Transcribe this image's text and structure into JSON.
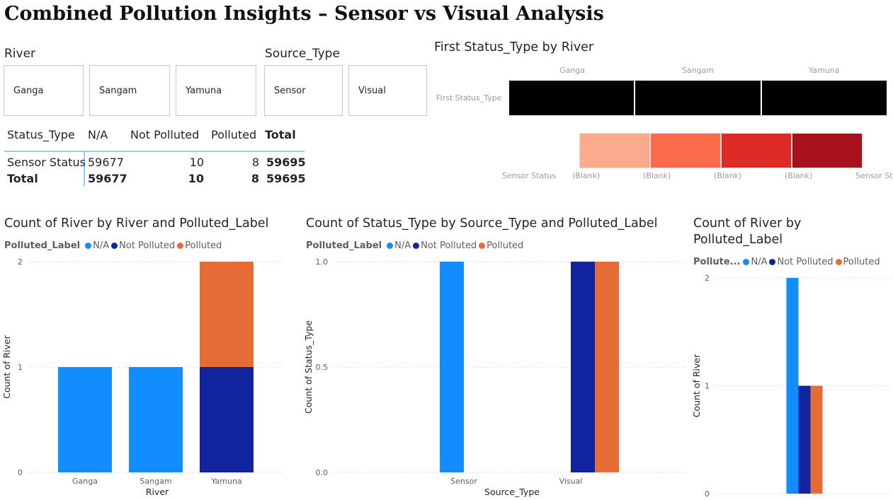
{
  "page_title": "Combined Pollution Insights – Sensor vs Visual Analysis",
  "colors": {
    "na": "#118dff",
    "not_polluted": "#12239e",
    "polluted": "#e66c37",
    "heat": [
      "#fcaa8e",
      "#fc6a4c",
      "#dc2b26",
      "#a7111b"
    ],
    "black_band": "#000000"
  },
  "slicers": {
    "river": {
      "title": "River",
      "items": [
        "Ganga",
        "Sangam",
        "Yamuna"
      ]
    },
    "source_type": {
      "title": "Source_Type",
      "items": [
        "Sensor",
        "Visual"
      ]
    }
  },
  "matrix": {
    "headers": [
      "Status_Type",
      "N/A",
      "Not Polluted",
      "Polluted",
      "Total"
    ],
    "rows": [
      {
        "label": "Sensor Status",
        "na": "59677",
        "not_polluted": "10",
        "polluted": "8",
        "total": "59695"
      },
      {
        "label": "Total",
        "na": "59677",
        "not_polluted": "10",
        "polluted": "8",
        "total": "59695"
      }
    ]
  },
  "heatmap": {
    "title": "First Status_Type by River",
    "columns": [
      "Ganga",
      "Sangam",
      "Yamuna"
    ],
    "row_label": "First Status_Type",
    "bottom_labels": [
      "Sensor Status",
      "(Blank)",
      "(Blank)",
      "(Blank)",
      "(Blank)",
      "Sensor Sta"
    ]
  },
  "chart_data": [
    {
      "type": "bar",
      "stacked": true,
      "title": "Count of River by River and Polluted_Label",
      "legend_title": "Polluted_Label",
      "legend": [
        "N/A",
        "Not Polluted",
        "Polluted"
      ],
      "xlabel": "River",
      "ylabel": "Count of River",
      "categories": [
        "Ganga",
        "Sangam",
        "Yamuna"
      ],
      "series": [
        {
          "name": "N/A",
          "values": [
            1,
            1,
            0
          ]
        },
        {
          "name": "Not Polluted",
          "values": [
            0,
            0,
            1
          ]
        },
        {
          "name": "Polluted",
          "values": [
            0,
            0,
            1
          ]
        }
      ],
      "ylim": [
        0,
        2
      ],
      "yticks": [
        "0",
        "1",
        "2"
      ],
      "grid": true,
      "legend_position": "top-left"
    },
    {
      "type": "bar",
      "stacked": false,
      "title": "Count of Status_Type by Source_Type and Polluted_Label",
      "legend_title": "Polluted_Label",
      "legend": [
        "N/A",
        "Not Polluted",
        "Polluted"
      ],
      "xlabel": "Source_Type",
      "ylabel": "Count of Status_Type",
      "categories": [
        "Sensor",
        "Visual"
      ],
      "series": [
        {
          "name": "N/A",
          "values": [
            1,
            0
          ]
        },
        {
          "name": "Not Polluted",
          "values": [
            0,
            1
          ]
        },
        {
          "name": "Polluted",
          "values": [
            0,
            1
          ]
        }
      ],
      "ylim": [
        0,
        1
      ],
      "yticks": [
        "0.0",
        "0.5",
        "1.0"
      ],
      "grid": true,
      "legend_position": "top-left"
    },
    {
      "type": "bar",
      "stacked": false,
      "title": "Count of River by Polluted_Label",
      "legend_title": "Pollute...",
      "legend": [
        "N/A",
        "Not Polluted",
        "Polluted"
      ],
      "xlabel": "",
      "ylabel": "Count of River",
      "categories": [
        ""
      ],
      "series": [
        {
          "name": "N/A",
          "values": [
            2
          ]
        },
        {
          "name": "Not Polluted",
          "values": [
            1
          ]
        },
        {
          "name": "Polluted",
          "values": [
            1
          ]
        }
      ],
      "ylim": [
        0,
        2
      ],
      "yticks": [
        "0",
        "1",
        "2"
      ],
      "grid": true,
      "legend_position": "top-left"
    }
  ]
}
